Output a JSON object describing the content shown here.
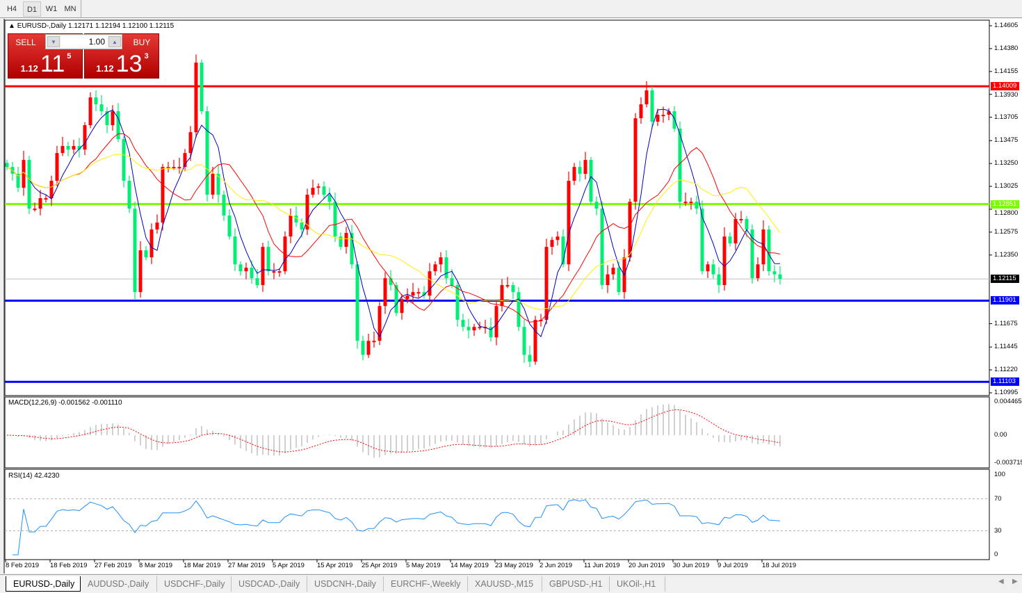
{
  "toolbar": {
    "timeframes": [
      {
        "label": "H4",
        "active": false
      },
      {
        "label": "D1",
        "active": true
      },
      {
        "label": "W1",
        "active": false
      },
      {
        "label": "MN",
        "active": false
      }
    ]
  },
  "chart": {
    "header": "EURUSD-,Daily  1.12171 1.12194 1.12100 1.12115",
    "symbol": "EURUSD-",
    "timeframe": "Daily",
    "trade_panel": {
      "sell_label": "SELL",
      "buy_label": "BUY",
      "lot": "1.00",
      "sell_prefix": "1.12",
      "sell_big": "11",
      "sell_sup": "5",
      "buy_prefix": "1.12",
      "buy_big": "13",
      "buy_sup": "3"
    },
    "price_ticks": [
      "1.14605",
      "1.14380",
      "1.14155",
      "1.13930",
      "1.13705",
      "1.13475",
      "1.13250",
      "1.13025",
      "1.12800",
      "1.12575",
      "1.12350",
      "1.11675",
      "1.11445",
      "1.11220",
      "1.10995"
    ],
    "price_range": [
      1.10995,
      1.14605
    ],
    "levels": [
      {
        "price": "1.14009",
        "color": "#ff0000"
      },
      {
        "price": "1.12851",
        "color": "#7cfc00"
      },
      {
        "price": "1.11901",
        "color": "#0000ff"
      },
      {
        "price": "1.11103",
        "color": "#0000ff"
      }
    ],
    "current_price": {
      "price": "1.12115",
      "color": "#000000"
    },
    "bull_color": "#ff0000",
    "bear_color": "#00ee76",
    "ma": [
      {
        "period": 5,
        "color": "#0000c0"
      },
      {
        "period": 13,
        "color": "#ff0000"
      },
      {
        "period": 21,
        "color": "#ffee00"
      }
    ],
    "closes": [
      1.13216,
      1.13148,
      1.13011,
      1.13285,
      1.12806,
      1.12806,
      1.12909,
      1.12909,
      1.1308,
      1.13353,
      1.13422,
      1.13387,
      1.13422,
      1.13387,
      1.13627,
      1.139,
      1.13832,
      1.13764,
      1.13627,
      1.13764,
      1.1349,
      1.1308,
      1.12806,
      1.11985,
      1.12396,
      1.12327,
      1.12601,
      1.12669,
      1.13216,
      1.13216,
      1.13216,
      1.13216,
      1.13353,
      1.13558,
      1.14242,
      1.13764,
      1.12943,
      1.13148,
      1.12943,
      1.12738,
      1.12532,
      1.12258,
      1.1219,
      1.12225,
      1.12122,
      1.12054,
      1.1243,
      1.1219,
      1.1219,
      1.1219,
      1.12532,
      1.12738,
      1.12669,
      1.12601,
      1.12943,
      1.13011,
      1.13025,
      1.12943,
      1.12874,
      1.12532,
      1.1243,
      1.12567,
      1.12258,
      1.11506,
      1.11368,
      1.11506,
      1.11506,
      1.11848,
      1.12122,
      1.12054,
      1.1178,
      1.11917,
      1.11951,
      1.11985,
      1.11985,
      1.11951,
      1.1219,
      1.12258,
      1.12327,
      1.12122,
      1.12054,
      1.11712,
      1.11643,
      1.11609,
      1.11643,
      1.11643,
      1.11643,
      1.1154,
      1.11848,
      1.12054,
      1.12054,
      1.11985,
      1.11643,
      1.11368,
      1.11301,
      1.11712,
      1.11712,
      1.1243,
      1.12498,
      1.12532,
      1.12258,
      1.1308,
      1.13216,
      1.13148,
      1.13285,
      1.12874,
      1.12806,
      1.12054,
      1.1216,
      1.12225,
      1.11985,
      1.12327,
      1.12874,
      1.13695,
      1.13832,
      1.13969,
      1.13661,
      1.13729,
      1.13729,
      1.13764,
      1.13593,
      1.12874,
      1.12874,
      1.12874,
      1.12806,
      1.1219,
      1.12258,
      1.1216,
      1.12054,
      1.12532,
      1.12464,
      1.12704,
      1.12704,
      1.12601,
      1.12122,
      1.12258,
      1.12601,
      1.1219,
      1.1216,
      1.12115
    ],
    "date_labels": [
      "8 Feb 2019",
      "18 Feb 2019",
      "27 Feb 2019",
      "8 Mar 2019",
      "18 Mar 2019",
      "27 Mar 2019",
      "5 Apr 2019",
      "15 Apr 2019",
      "25 Apr 2019",
      "5 May 2019",
      "14 May 2019",
      "23 May 2019",
      "2 Jun 2019",
      "11 Jun 2019",
      "20 Jun 2019",
      "30 Jun 2019",
      "9 Jul 2019",
      "18 Jul 2019"
    ]
  },
  "macd": {
    "title": "MACD(12,26,9) -0.001562 -0.001110",
    "ticks": [
      "0.004465",
      "0.00",
      "-0.003715"
    ],
    "range": [
      -0.003715,
      0.004465
    ],
    "hist_color": "#c0c0c0",
    "signal_color": "#ff0000"
  },
  "rsi": {
    "title": "RSI(14) 42.4230",
    "ticks": [
      "100",
      "70",
      "30",
      "0"
    ],
    "levels": [
      70,
      30
    ],
    "color": "#1e90ff"
  },
  "tabs": [
    {
      "label": "EURUSD-,Daily",
      "active": true
    },
    {
      "label": "AUDUSD-,Daily"
    },
    {
      "label": "USDCHF-,Daily"
    },
    {
      "label": "USDCAD-,Daily"
    },
    {
      "label": "USDCNH-,Daily"
    },
    {
      "label": "EURCHF-,Weekly"
    },
    {
      "label": "XAUUSD-,M15"
    },
    {
      "label": "GBPUSD-,H1"
    },
    {
      "label": "UKOil-,H1"
    }
  ]
}
